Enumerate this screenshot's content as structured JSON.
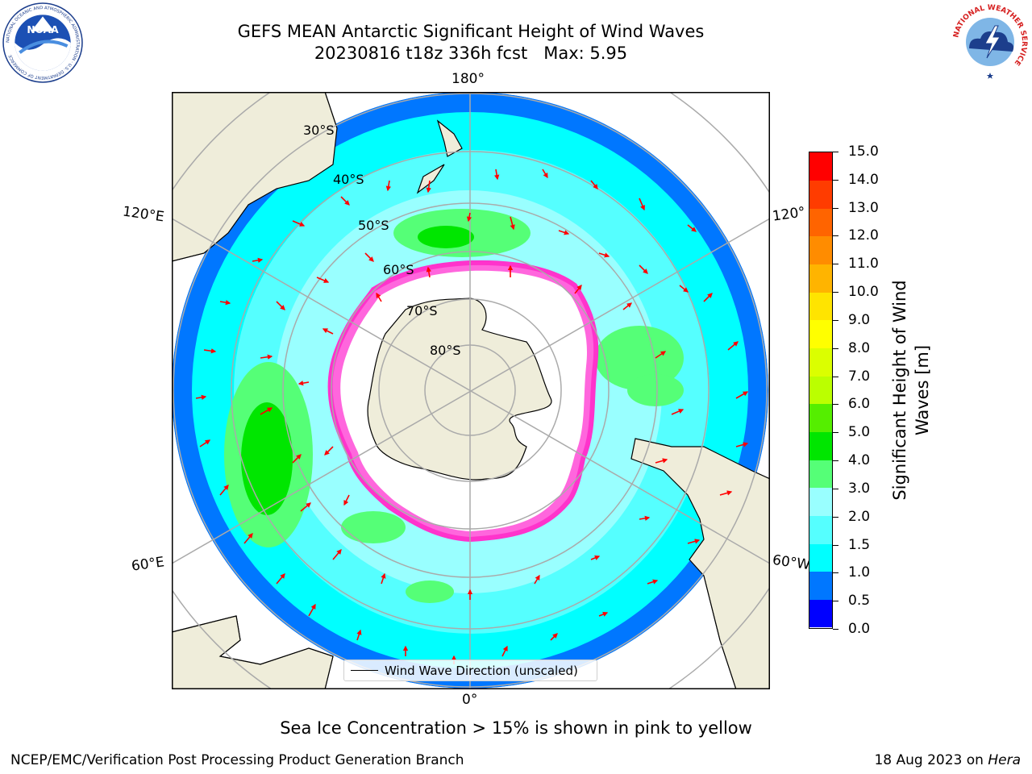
{
  "header": {
    "title_line1": "GEFS MEAN Antarctic Significant Height of Wind Waves",
    "title_line2": "20230816 t18z 336h fcst   Max: 5.95"
  },
  "logos": {
    "noaa": {
      "text": "NOAA",
      "ring_text": "NATIONAL OCEANIC AND ATMOSPHERIC ADMINISTRATION · U.S. DEPARTMENT OF COMMERCE"
    },
    "nws": {
      "ring_text": "NATIONAL WEATHER SERVICE"
    }
  },
  "map": {
    "projection": "south-polar-stereographic",
    "longitude_labels": [
      "180°",
      "120°E",
      "120°",
      "60°E",
      "60°W",
      "0°"
    ],
    "latitude_labels": [
      "30°S",
      "40°S",
      "50°S",
      "60°S",
      "70°S",
      "80°S"
    ],
    "legend_label": "Wind Wave Direction (unscaled)",
    "colors": {
      "land": "#efedda",
      "ice": "#ff33cc",
      "ocean_low": "#00ffff",
      "ocean_mid": "#99ffff",
      "ocean_high": "#00e600",
      "arrow": "#ff0000"
    }
  },
  "colorbar": {
    "label": "Significant Height of Wind Waves [m]",
    "label_line1": "Significant Height of Wind",
    "label_line2": "Waves [m]",
    "ticks": [
      "0.0",
      "0.5",
      "1.0",
      "1.5",
      "2.0",
      "3.0",
      "4.0",
      "5.0",
      "6.0",
      "7.0",
      "8.0",
      "9.0",
      "10.0",
      "11.0",
      "12.0",
      "13.0",
      "14.0",
      "15.0"
    ],
    "colors": [
      "#0000ff",
      "#0077ff",
      "#00ffff",
      "#55ffff",
      "#99ffff",
      "#55ff77",
      "#00e600",
      "#55ee00",
      "#bbff00",
      "#dbff00",
      "#ffff00",
      "#ffe400",
      "#ffb400",
      "#ff8c00",
      "#ff6400",
      "#ff3c00",
      "#ff0000"
    ]
  },
  "note": "Sea Ice Concentration > 15% is shown in pink to yellow",
  "footer": {
    "left": "NCEP/EMC/Verification Post Processing Product Generation Branch",
    "right_prefix": "18 Aug 2023 on ",
    "right_host": "Hera"
  }
}
